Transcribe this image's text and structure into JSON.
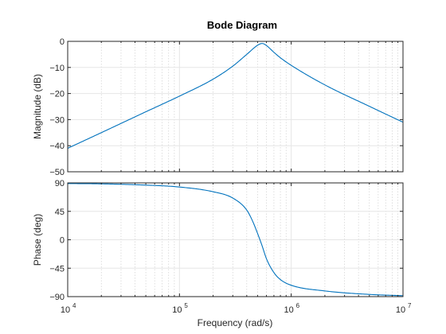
{
  "chart_data": {
    "type": "line",
    "title": "Bode Diagram",
    "xlabel": "Frequency  (rad/s)",
    "x_scale": "log",
    "xlim": [
      10000,
      10000000
    ],
    "x_ticks": [
      10000,
      100000,
      1000000,
      10000000
    ],
    "x_tick_labels": [
      {
        "base": "10",
        "exp": "4"
      },
      {
        "base": "10",
        "exp": "5"
      },
      {
        "base": "10",
        "exp": "6"
      },
      {
        "base": "10",
        "exp": "7"
      }
    ],
    "grid": true,
    "colors": {
      "line": "#0072bd",
      "grid": "#e6e6e6",
      "axes": "#262626"
    },
    "panels": [
      {
        "name": "magnitude",
        "ylabel": "Magnitude (dB)",
        "ylim": [
          -50,
          0
        ],
        "y_ticks": [
          0,
          -10,
          -20,
          -30,
          -40,
          -50
        ],
        "y_tick_labels": [
          "0",
          "−10",
          "−20",
          "−30",
          "−40",
          "−50"
        ],
        "series": [
          {
            "x": [
              10000,
              20000,
              50000,
              100000,
              200000,
              300000,
              400000,
              500000,
              550000,
              600000,
              700000,
              800000,
              1000000,
              2000000,
              5000000,
              10000000
            ],
            "values": [
              -41,
              -35,
              -27,
              -21,
              -14.5,
              -9.5,
              -5,
              -1.5,
              -0.8,
              -1.6,
              -4.2,
              -6.3,
              -9.2,
              -16.7,
              -24.9,
              -31
            ]
          }
        ]
      },
      {
        "name": "phase",
        "ylabel": "Phase (deg)",
        "ylim": [
          -90,
          90
        ],
        "y_ticks": [
          90,
          45,
          0,
          -45,
          -90
        ],
        "y_tick_labels": [
          "90",
          "45",
          "0",
          "−45",
          "−90"
        ],
        "series": [
          {
            "x": [
              10000,
              20000,
              50000,
              100000,
              200000,
              300000,
              400000,
              450000,
              500000,
              550000,
              600000,
              700000,
              800000,
              1000000,
              2000000,
              5000000,
              10000000
            ],
            "values": [
              89,
              88.5,
              86.5,
              83.5,
              76,
              66,
              47,
              30,
              10,
              -10,
              -30,
              -52,
              -63,
              -72,
              -81,
              -86.5,
              -88.5
            ]
          }
        ]
      }
    ]
  }
}
